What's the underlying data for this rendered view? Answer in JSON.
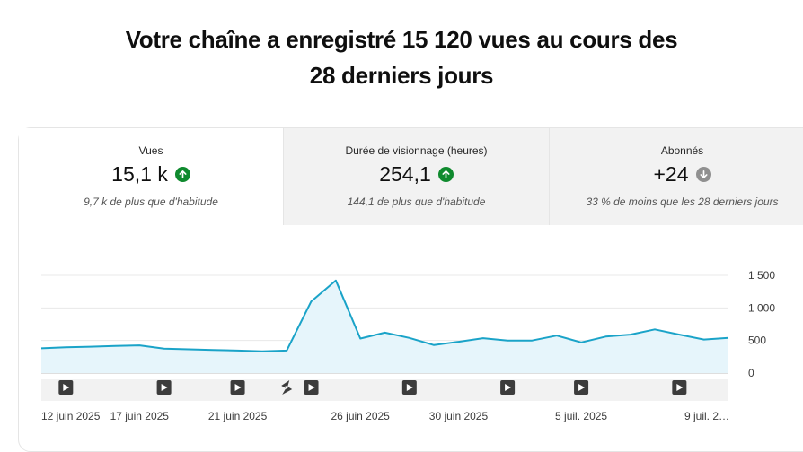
{
  "headline": {
    "line1": "Votre chaîne a enregistré 15 120 vues au cours des",
    "line2": "28 derniers jours"
  },
  "metrics": [
    {
      "label": "Vues",
      "value": "15,1 k",
      "trend": "up",
      "trend_color": "#0f8a2e",
      "comparison": "9,7 k de plus que d'habitude",
      "selected": true
    },
    {
      "label": "Durée de visionnage (heures)",
      "value": "254,1",
      "trend": "up",
      "trend_color": "#0f8a2e",
      "comparison": "144,1 de plus que d'habitude",
      "selected": false
    },
    {
      "label": "Abonnés",
      "value": "+24",
      "trend": "down",
      "trend_color": "#909090",
      "comparison": "33 % de moins que les 28 derniers jours",
      "selected": false
    }
  ],
  "chart_data": {
    "type": "area",
    "series": [
      {
        "values": [
          380,
          395,
          405,
          415,
          425,
          375,
          365,
          355,
          345,
          335,
          345,
          1100,
          1420,
          530,
          620,
          540,
          430,
          480,
          535,
          500,
          500,
          575,
          470,
          560,
          590,
          670,
          590,
          515,
          540
        ]
      }
    ],
    "ylim": [
      0,
      1500
    ],
    "yticks": [
      "0",
      "500",
      "1 000",
      "1 500"
    ],
    "ytick_values": [
      0,
      500,
      1000,
      1500
    ],
    "x_tick_labels": [
      "12 juin 2025",
      "17 juin 2025",
      "21 juin 2025",
      "26 juin 2025",
      "30 juin 2025",
      "5 juil. 2025",
      "9 juil. 2…"
    ],
    "x_tick_indices": [
      0,
      4,
      8,
      13,
      17,
      22,
      26
    ],
    "grid": true,
    "line_color": "#1aa3c8",
    "fill_color": "#e6f5fb",
    "markers": [
      {
        "type": "video",
        "index": 1
      },
      {
        "type": "video",
        "index": 5
      },
      {
        "type": "video",
        "index": 8
      },
      {
        "type": "short",
        "index": 10
      },
      {
        "type": "video",
        "index": 11
      },
      {
        "type": "video",
        "index": 15
      },
      {
        "type": "video",
        "index": 19
      },
      {
        "type": "video",
        "index": 22
      },
      {
        "type": "video",
        "index": 26
      }
    ]
  }
}
